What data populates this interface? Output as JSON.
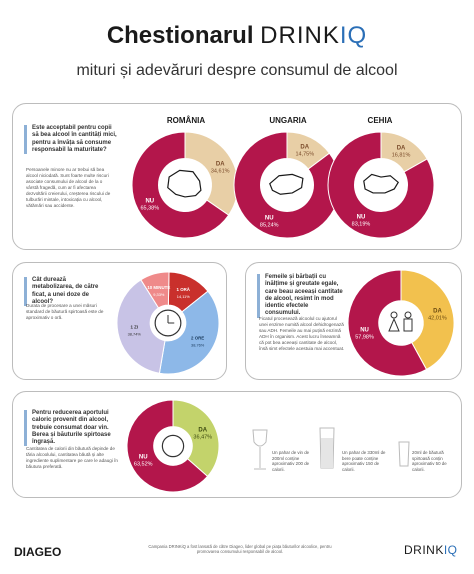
{
  "header": {
    "title_bold": "Chestionarul",
    "title_brand": "DRINK",
    "title_brand_iq": "IQ",
    "subtitle": "mituri și adevăruri despre consumul de alcool"
  },
  "colors": {
    "nu": "#b3164b",
    "da_beige": "#e8cfa6",
    "da_yellow": "#f2c14e",
    "da_green": "#c3d36b",
    "accent_blue": "#2b6fb7",
    "time_blue": "#8db8e8",
    "time_purple": "#c8c3e6",
    "time_pink": "#ef8a8a",
    "time_red": "#c9302c"
  },
  "panel1": {
    "question": "Este acceptabil pentru copii să bea alcool în cantități mici, pentru a învăța să consume responsabil la maturitate?",
    "answer": "Persoanele minore nu ar trebui să bea alcool niciodată. Sunt foarte multe riscuri asociate consumului de alcool de la o vârstă fragedă, cum ar fi afectarea dezvoltării creierului, creșterea riscului de tulburări mintale, intoxicația cu alcool, vătămări sau accidente."
  },
  "panel2": {
    "question": "Cât durează metabolizarea, de către ficat, a unei doze de alcool?",
    "answer": "Durata de procesare a unei măsuri standard de băutură spirtoasă este de aproximativ o oră."
  },
  "panel3": {
    "question": "Femeile și bărbații cu înălțime și greutate egale, care beau aceeași cantitate de alcool, resimt în mod identic efectele consumului.",
    "answer": "Ficatul procesează alcoolul cu ajutorul unei enzime numită alcool dehidrogenază sau ADH. Femeile au mai puțină enzimă ADH în organism. Acest lucru înseamnă că pot bea aceeași cantitate de alcool, însă simt efectele acestuia mai accentuat."
  },
  "panel4": {
    "question": "Pentru reducerea aportului caloric provenit din alcool, trebuie consumat doar vin. Berea și băuturile spirtoase îngrașă.",
    "answer": "Cantitatea de calorii din băutură depinde de tăria alcoolului, cantitatea băută și alte ingrediente suplimentare pe care le adaugi în băutura preferată.",
    "glass_notes": [
      "Un pahar de vin de 200ml conține aproximativ 200 de calorii.",
      "Un pahar de 330ml de bere poate conține aproximativ 150 de calorii.",
      "20ml de băutură spirtoasă conțin aproximativ 50 de calorii."
    ]
  },
  "footer": {
    "brand_left": "DIAGEO",
    "note": "Campania DRINKiQ a fost lansată de către Diageo, lider global pe piața băuturilor alcoolice, pentru promovarea consumului responsabil de alcool.",
    "brand_right": "DRINK",
    "brand_right_iq": "IQ"
  },
  "chart_data": [
    {
      "type": "pie",
      "title": "ROMÂNIA",
      "categories": [
        "DA",
        "NU"
      ],
      "values": [
        34.61,
        65.38
      ],
      "labels": [
        "34,61%",
        "65,38%"
      ]
    },
    {
      "type": "pie",
      "title": "UNGARIA",
      "categories": [
        "DA",
        "NU"
      ],
      "values": [
        14.75,
        85.24
      ],
      "labels": [
        "14,75%",
        "85,24%"
      ]
    },
    {
      "type": "pie",
      "title": "CEHIA",
      "categories": [
        "DA",
        "NU"
      ],
      "values": [
        16.81,
        83.19
      ],
      "labels": [
        "16,81%",
        "83,19%"
      ]
    },
    {
      "type": "pie",
      "categories": [
        "1 ORĂ",
        "2 ORE",
        "1 ZI",
        "10 MINUTE"
      ],
      "values": [
        14.11,
        38.76,
        38.74,
        9.33
      ],
      "labels": [
        "14,11%",
        "38,76%",
        "38,74%",
        "9,33%"
      ]
    },
    {
      "type": "pie",
      "categories": [
        "DA",
        "NU"
      ],
      "values": [
        42.01,
        57.98
      ],
      "labels": [
        "42,01%",
        "57,98%"
      ]
    },
    {
      "type": "pie",
      "categories": [
        "DA",
        "NU"
      ],
      "values": [
        36.47,
        63.52
      ],
      "labels": [
        "36,47%",
        "63,52%"
      ]
    }
  ]
}
